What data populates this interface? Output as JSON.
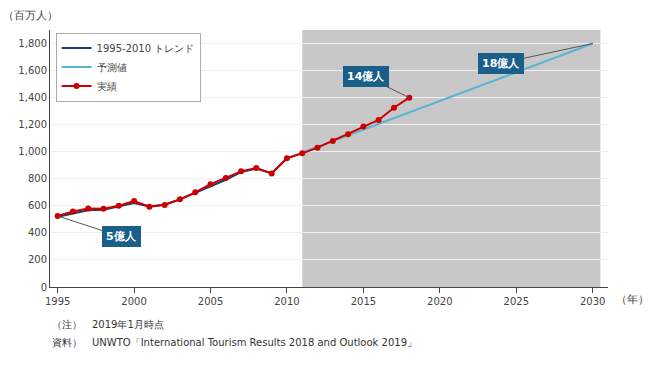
{
  "chart_data": {
    "type": "line",
    "xlabel": "（年）",
    "ylabel": "（百万人）",
    "xlim": [
      1994.5,
      2031
    ],
    "ylim": [
      0,
      1900
    ],
    "xticks": [
      1995,
      2000,
      2005,
      2010,
      2015,
      2020,
      2025,
      2030
    ],
    "yticks": [
      0,
      200,
      400,
      600,
      800,
      {
        "value": 1000,
        "label": "1,000"
      },
      {
        "value": 1200,
        "label": "1,200"
      },
      {
        "value": 1400,
        "label": "1,400"
      },
      {
        "value": 1600,
        "label": "1,600"
      },
      {
        "value": 1800,
        "label": "1,800"
      }
    ],
    "grid": "y",
    "legend": "upper left",
    "shaded_x": [
      2011,
      2030.5
    ],
    "shaded_color": "#c8c8c8",
    "series": [
      {
        "name": "1995-2010 トレンド",
        "color": "#1a3f6f",
        "line_style": "solid",
        "x": [
          1995,
          1996,
          1997,
          1998,
          1999,
          2000,
          2001,
          2002,
          2003,
          2004,
          2005,
          2006,
          2007,
          2008,
          2009,
          2010
        ],
        "values": [
          520,
          545,
          568,
          572,
          598,
          620,
          596,
          610,
          648,
          695,
          740,
          793,
          850,
          875,
          840,
          952
        ]
      },
      {
        "name": "予測値",
        "color": "#5ab4d5",
        "line_style": "solid",
        "x": [
          2010,
          2030
        ],
        "values": [
          952,
          1800
        ]
      },
      {
        "name": "実績",
        "color": "#cc0000",
        "line_style": "solid",
        "marker": "circle",
        "x": [
          1995,
          1996,
          1997,
          1998,
          1999,
          2000,
          2001,
          2002,
          2003,
          2004,
          2005,
          2006,
          2007,
          2008,
          2009,
          2010,
          2011,
          2012,
          2013,
          2014,
          2015,
          2016,
          2017,
          2018
        ],
        "values": [
          525,
          558,
          580,
          578,
          601,
          635,
          594,
          607,
          648,
          700,
          760,
          805,
          855,
          880,
          840,
          952,
          988,
          1030,
          1080,
          1130,
          1186,
          1235,
          1325,
          1400
        ]
      }
    ],
    "annotations": [
      {
        "text": "5億人",
        "x": 1995,
        "y": 525,
        "text_x": 1999.2,
        "text_y": 370
      },
      {
        "text": "14億人",
        "x": 2018,
        "y": 1400,
        "text_x": 2015.2,
        "text_y": 1555
      },
      {
        "text": "18億人",
        "x": 2030,
        "y": 1800,
        "text_x": 2024.0,
        "text_y": 1655
      }
    ],
    "annotation_color": "#1a5f8a",
    "annotation_text_color": "#ffffff",
    "note": "（注）　2019年1月時点",
    "source": "資料）　UNWTO「International Tourism Results 2018 and Outlook 2019」"
  }
}
